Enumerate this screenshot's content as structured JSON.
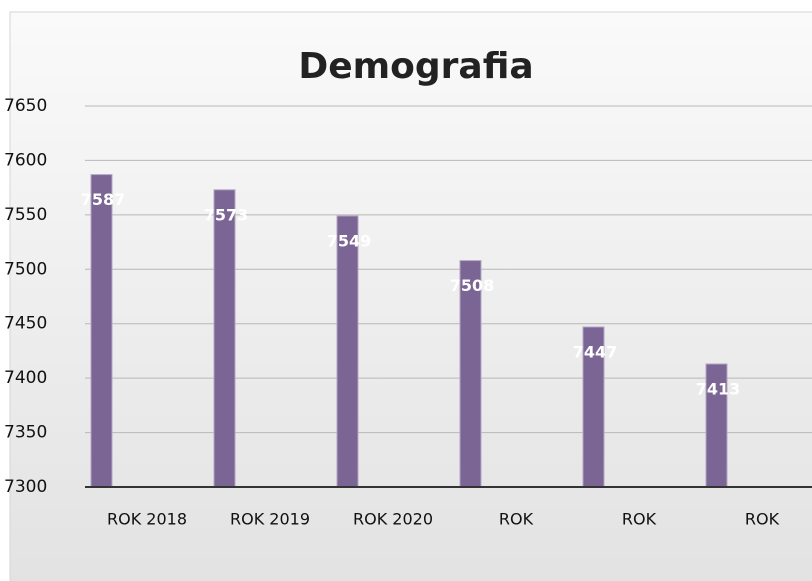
{
  "chart_data": {
    "type": "bar",
    "title": "Demografia",
    "categories": [
      "ROK 2018",
      "ROK 2019",
      "ROK 2020",
      "ROK",
      "ROK",
      "ROK"
    ],
    "values": [
      7587,
      7573,
      7549,
      7508,
      7447,
      7413
    ],
    "color": "#7b6595",
    "ylim": [
      7300,
      7650
    ],
    "yticks": [
      7300,
      7350,
      7400,
      7450,
      7500,
      7550,
      7600,
      7650
    ],
    "grid": true
  }
}
